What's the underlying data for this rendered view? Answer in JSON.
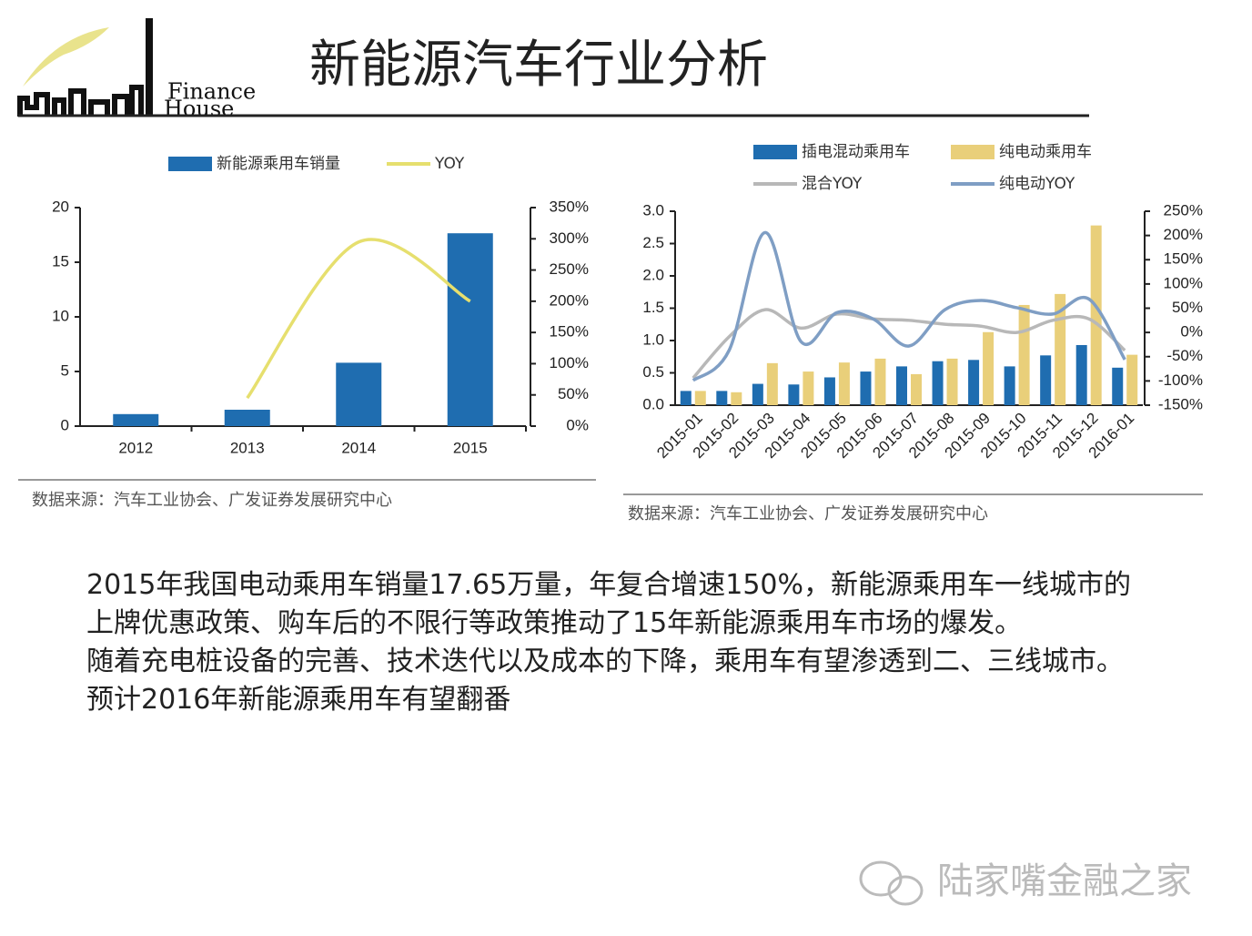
{
  "title": "新能源汽车行业分析",
  "logo": {
    "line1": "Finance",
    "line2": "House"
  },
  "sources": [
    "数据来源：汽车工业协会、广发证券发展研究中心",
    "数据来源：汽车工业协会、广发证券发展研究中心"
  ],
  "paragraphs": [
    "2015年我国电动乘用车销量17.65万量，年复合增速150%，新能源乘用车一线城市的上牌优惠政策、购车后的不限行等政策推动了15年新能源乘用车市场的爆发。",
    "随着充电桩设备的完善、技术迭代以及成本的下降，乘用车有望渗透到二、三线城市。",
    "预计2016年新能源乘用车有望翻番"
  ],
  "watermark": "陆家嘴金融之家",
  "chart_data": [
    {
      "type": "combo",
      "categories": [
        "2012",
        "2013",
        "2014",
        "2015"
      ],
      "series": [
        {
          "name": "新能源乘用车销量",
          "type": "bar",
          "color": "#1f6db0",
          "values": [
            1.1,
            1.5,
            5.8,
            17.65
          ]
        },
        {
          "name": "YOY",
          "type": "line",
          "axis": "y2",
          "color": "#e6df6e",
          "values": [
            null,
            45,
            295,
            200
          ]
        }
      ],
      "ylim": [
        0,
        20
      ],
      "yticks": [
        0,
        5,
        10,
        15,
        20
      ],
      "y2lim": [
        0,
        350
      ],
      "y2ticks": [
        {
          "value": 0,
          "label": "0%"
        },
        {
          "value": 50,
          "label": "50%"
        },
        {
          "value": 100,
          "label": "100%"
        },
        {
          "value": 150,
          "label": "150%"
        },
        {
          "value": 200,
          "label": "200%"
        },
        {
          "value": 250,
          "label": "250%"
        },
        {
          "value": 300,
          "label": "300%"
        },
        {
          "value": 350,
          "label": "350%"
        }
      ],
      "legend": "top",
      "grid": false
    },
    {
      "type": "combo",
      "categories": [
        "2015-01",
        "2015-02",
        "2015-03",
        "2015-04",
        "2015-05",
        "2015-06",
        "2015-07",
        "2015-08",
        "2015-09",
        "2015-10",
        "2015-11",
        "2015-12",
        "2016-01"
      ],
      "series": [
        {
          "name": "插电混动乘用车",
          "type": "bar",
          "color": "#1f6db0",
          "values": [
            0.22,
            0.22,
            0.33,
            0.32,
            0.43,
            0.52,
            0.6,
            0.68,
            0.7,
            0.6,
            0.77,
            0.93,
            0.58
          ]
        },
        {
          "name": "纯电动乘用车",
          "type": "bar",
          "color": "#e9cf7a",
          "values": [
            0.22,
            0.2,
            0.65,
            0.52,
            0.66,
            0.72,
            0.48,
            0.72,
            1.13,
            1.55,
            1.72,
            2.78,
            0.78
          ]
        },
        {
          "name": "混合YOY",
          "type": "line",
          "axis": "y2",
          "color": "#b8b8b8",
          "values": [
            -94,
            -9,
            47,
            9,
            38,
            28,
            25,
            17,
            13,
            0,
            25,
            28,
            -37
          ]
        },
        {
          "name": "纯电动YOY",
          "type": "line",
          "axis": "y2",
          "color": "#7f9ec4",
          "values": [
            -99,
            -37,
            206,
            -19,
            41,
            28,
            -28,
            47,
            66,
            51,
            38,
            69,
            -56
          ]
        }
      ],
      "ylim": [
        0,
        3
      ],
      "yticks": [
        {
          "value": 0,
          "label": "0.0"
        },
        0.5,
        {
          "value": 1,
          "label": "1.0"
        },
        1.5,
        {
          "value": 2,
          "label": "2.0"
        },
        2.5,
        {
          "value": 3,
          "label": "3.0"
        }
      ],
      "y2lim": [
        -150,
        250
      ],
      "y2ticks": [
        {
          "value": -150,
          "label": "-150%"
        },
        {
          "value": -100,
          "label": "-100%"
        },
        {
          "value": -50,
          "label": "-50%"
        },
        {
          "value": 0,
          "label": "0%"
        },
        {
          "value": 50,
          "label": "50%"
        },
        {
          "value": 100,
          "label": "100%"
        },
        {
          "value": 150,
          "label": "150%"
        },
        {
          "value": 200,
          "label": "200%"
        },
        {
          "value": 250,
          "label": "250%"
        }
      ],
      "legend": "top",
      "grid": false
    }
  ]
}
